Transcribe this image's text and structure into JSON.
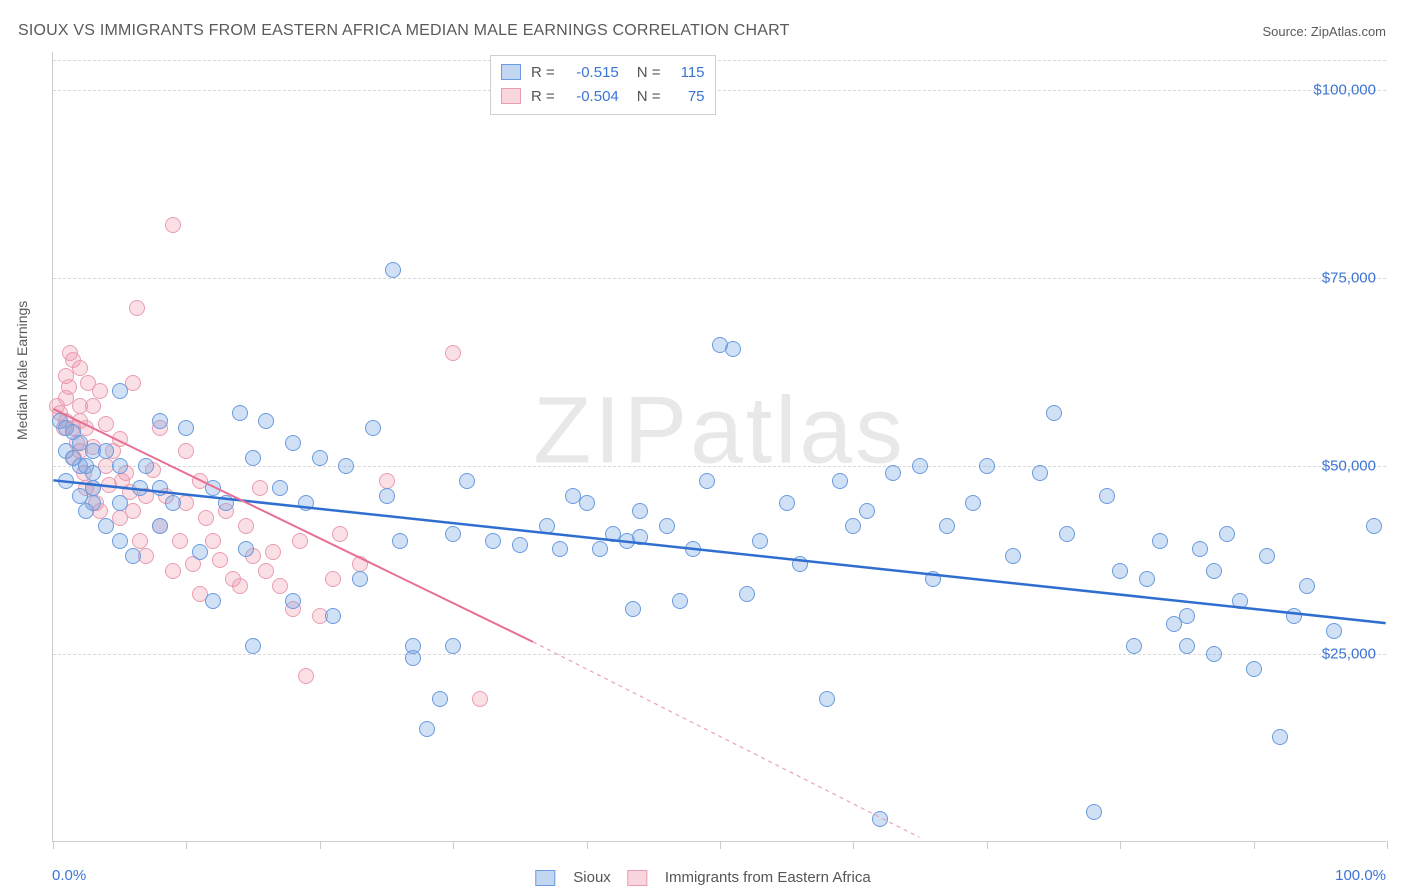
{
  "title": "SIOUX VS IMMIGRANTS FROM EASTERN AFRICA MEDIAN MALE EARNINGS CORRELATION CHART",
  "source_label": "Source: ZipAtlas.com",
  "watermark": "ZIPatlas",
  "chart": {
    "type": "scatter",
    "xlim": [
      0,
      100
    ],
    "ylim": [
      0,
      105000
    ],
    "background_color": "#ffffff",
    "grid_color": "#d8d8d8",
    "axis_color": "#cccccc",
    "ylabel": "Median Male Earnings",
    "ylabel_fontsize": 14,
    "ytick_positions": [
      25000,
      50000,
      75000,
      100000
    ],
    "ytick_labels": [
      "$25,000",
      "$50,000",
      "$75,000",
      "$100,000"
    ],
    "ytick_color": "#3b74d6",
    "xtick_positions": [
      0,
      10,
      20,
      30,
      40,
      50,
      60,
      70,
      80,
      90,
      100
    ],
    "xaxis_start_label": "0.0%",
    "xaxis_end_label": "100.0%",
    "xaxis_label_color": "#3b74d6",
    "marker_radius": 8,
    "marker_border_width": 1.2,
    "marker_fill_opacity": 0.35,
    "gridline_top_y": 105000
  },
  "series": {
    "blue": {
      "name": "Sioux",
      "fill_color": "rgba(120,165,225,0.35)",
      "border_color": "#6a9be0",
      "R": "-0.515",
      "N": "115",
      "trendline": {
        "x1": 0,
        "y1": 48000,
        "x2": 100,
        "y2": 29000,
        "color": "#2f6ed0",
        "width": 2.5,
        "dash": "none"
      },
      "points": [
        [
          0.5,
          56000
        ],
        [
          1,
          52000
        ],
        [
          1,
          55000
        ],
        [
          1,
          48000
        ],
        [
          1.5,
          51000
        ],
        [
          1.5,
          54500
        ],
        [
          2,
          46000
        ],
        [
          2,
          50000
        ],
        [
          2,
          53000
        ],
        [
          2.5,
          44000
        ],
        [
          2.5,
          50000
        ],
        [
          3,
          45000
        ],
        [
          3,
          52000
        ],
        [
          3,
          49000
        ],
        [
          3,
          47000
        ],
        [
          4,
          42000
        ],
        [
          4,
          52000
        ],
        [
          5,
          60000
        ],
        [
          5,
          50000
        ],
        [
          5,
          45000
        ],
        [
          5,
          40000
        ],
        [
          6,
          38000
        ],
        [
          6.5,
          47000
        ],
        [
          7,
          50000
        ],
        [
          8,
          56000
        ],
        [
          8,
          42000
        ],
        [
          8,
          47000
        ],
        [
          9,
          45000
        ],
        [
          10,
          55000
        ],
        [
          11,
          38500
        ],
        [
          12,
          47000
        ],
        [
          12,
          32000
        ],
        [
          13,
          45000
        ],
        [
          14,
          57000
        ],
        [
          14.5,
          39000
        ],
        [
          15,
          51000
        ],
        [
          15,
          26000
        ],
        [
          16,
          56000
        ],
        [
          17,
          47000
        ],
        [
          18,
          53000
        ],
        [
          18,
          32000
        ],
        [
          19,
          45000
        ],
        [
          20,
          51000
        ],
        [
          21,
          30000
        ],
        [
          22,
          50000
        ],
        [
          23,
          35000
        ],
        [
          24,
          55000
        ],
        [
          25,
          46000
        ],
        [
          25.5,
          76000
        ],
        [
          26,
          40000
        ],
        [
          27,
          24500
        ],
        [
          27,
          26000
        ],
        [
          28,
          15000
        ],
        [
          29,
          19000
        ],
        [
          30,
          41000
        ],
        [
          30,
          26000
        ],
        [
          31,
          48000
        ],
        [
          33,
          40000
        ],
        [
          35,
          39500
        ],
        [
          37,
          42000
        ],
        [
          38,
          39000
        ],
        [
          39,
          46000
        ],
        [
          40,
          45000
        ],
        [
          41,
          39000
        ],
        [
          42,
          41000
        ],
        [
          43,
          40000
        ],
        [
          43.5,
          31000
        ],
        [
          44,
          44000
        ],
        [
          44,
          40500
        ],
        [
          46,
          42000
        ],
        [
          47,
          32000
        ],
        [
          48,
          39000
        ],
        [
          49,
          48000
        ],
        [
          50,
          66000
        ],
        [
          51,
          65500
        ],
        [
          52,
          33000
        ],
        [
          53,
          40000
        ],
        [
          55,
          45000
        ],
        [
          56,
          37000
        ],
        [
          58,
          19000
        ],
        [
          59,
          48000
        ],
        [
          60,
          42000
        ],
        [
          61,
          44000
        ],
        [
          62,
          3000
        ],
        [
          63,
          49000
        ],
        [
          65,
          50000
        ],
        [
          66,
          35000
        ],
        [
          67,
          42000
        ],
        [
          69,
          45000
        ],
        [
          70,
          50000
        ],
        [
          72,
          38000
        ],
        [
          74,
          49000
        ],
        [
          75,
          57000
        ],
        [
          76,
          41000
        ],
        [
          78,
          4000
        ],
        [
          79,
          46000
        ],
        [
          80,
          36000
        ],
        [
          81,
          26000
        ],
        [
          82,
          35000
        ],
        [
          83,
          40000
        ],
        [
          84,
          29000
        ],
        [
          85,
          26000
        ],
        [
          85,
          30000
        ],
        [
          86,
          39000
        ],
        [
          87,
          25000
        ],
        [
          87,
          36000
        ],
        [
          88,
          41000
        ],
        [
          89,
          32000
        ],
        [
          90,
          23000
        ],
        [
          91,
          38000
        ],
        [
          92,
          14000
        ],
        [
          93,
          30000
        ],
        [
          94,
          34000
        ],
        [
          96,
          28000
        ],
        [
          99,
          42000
        ]
      ]
    },
    "pink": {
      "name": "Immigrants from Eastern Africa",
      "fill_color": "rgba(240,150,170,0.30)",
      "border_color": "#ea9db2",
      "R": "-0.504",
      "N": "75",
      "trendline_solid": {
        "x1": 0,
        "y1": 57500,
        "x2": 36,
        "y2": 26500,
        "color": "#e76f92",
        "width": 2,
        "dash": "none"
      },
      "trendline_dash": {
        "x1": 36,
        "y1": 26500,
        "x2": 65,
        "y2": 500,
        "color": "#e8a4b6",
        "width": 1.2,
        "dash": "4,4"
      },
      "points": [
        [
          0.3,
          58000
        ],
        [
          0.5,
          57000
        ],
        [
          0.8,
          55000
        ],
        [
          1,
          59000
        ],
        [
          1,
          56000
        ],
        [
          1,
          62000
        ],
        [
          1.2,
          60500
        ],
        [
          1.3,
          65000
        ],
        [
          1.5,
          55000
        ],
        [
          1.5,
          64000
        ],
        [
          1.6,
          51000
        ],
        [
          1.8,
          53000
        ],
        [
          2,
          52000
        ],
        [
          2,
          58000
        ],
        [
          2,
          63000
        ],
        [
          2,
          56000
        ],
        [
          2.3,
          49000
        ],
        [
          2.5,
          47000
        ],
        [
          2.5,
          55000
        ],
        [
          2.6,
          61000
        ],
        [
          3,
          58000
        ],
        [
          3,
          52500
        ],
        [
          3,
          47000
        ],
        [
          3.2,
          45000
        ],
        [
          3.5,
          44000
        ],
        [
          3.5,
          60000
        ],
        [
          4,
          50000
        ],
        [
          4,
          55500
        ],
        [
          4.2,
          47500
        ],
        [
          4.5,
          52000
        ],
        [
          5,
          43000
        ],
        [
          5,
          53500
        ],
        [
          5.2,
          48000
        ],
        [
          5.5,
          49000
        ],
        [
          5.8,
          46500
        ],
        [
          6,
          44000
        ],
        [
          6,
          61000
        ],
        [
          6.3,
          71000
        ],
        [
          6.5,
          40000
        ],
        [
          7,
          46000
        ],
        [
          7,
          38000
        ],
        [
          7.5,
          49500
        ],
        [
          8,
          55000
        ],
        [
          8,
          42000
        ],
        [
          8.5,
          46000
        ],
        [
          9,
          82000
        ],
        [
          9,
          36000
        ],
        [
          9.5,
          40000
        ],
        [
          10,
          45000
        ],
        [
          10,
          52000
        ],
        [
          10.5,
          37000
        ],
        [
          11,
          33000
        ],
        [
          11,
          48000
        ],
        [
          11.5,
          43000
        ],
        [
          12,
          40000
        ],
        [
          12.5,
          37500
        ],
        [
          13,
          44000
        ],
        [
          13.5,
          35000
        ],
        [
          14,
          34000
        ],
        [
          14.5,
          42000
        ],
        [
          15,
          38000
        ],
        [
          15.5,
          47000
        ],
        [
          16,
          36000
        ],
        [
          16.5,
          38500
        ],
        [
          17,
          34000
        ],
        [
          18,
          31000
        ],
        [
          18.5,
          40000
        ],
        [
          19,
          22000
        ],
        [
          20,
          30000
        ],
        [
          21,
          35000
        ],
        [
          21.5,
          41000
        ],
        [
          23,
          37000
        ],
        [
          25,
          48000
        ],
        [
          30,
          65000
        ],
        [
          32,
          19000
        ]
      ]
    }
  },
  "legend_top": {
    "rows": [
      {
        "swatch": "blue",
        "r_label": "R =",
        "r_value": "-0.515",
        "n_label": "N =",
        "n_value": "115"
      },
      {
        "swatch": "pink",
        "r_label": "R =",
        "r_value": "-0.504",
        "n_label": "N =",
        "n_value": "75"
      }
    ],
    "label_color": "#555555",
    "value_color": "#3b74d6",
    "fontsize": 15
  },
  "legend_bottom": {
    "items": [
      {
        "swatch": "blue",
        "label": "Sioux"
      },
      {
        "swatch": "pink",
        "label": "Immigrants from Eastern Africa"
      }
    ]
  }
}
